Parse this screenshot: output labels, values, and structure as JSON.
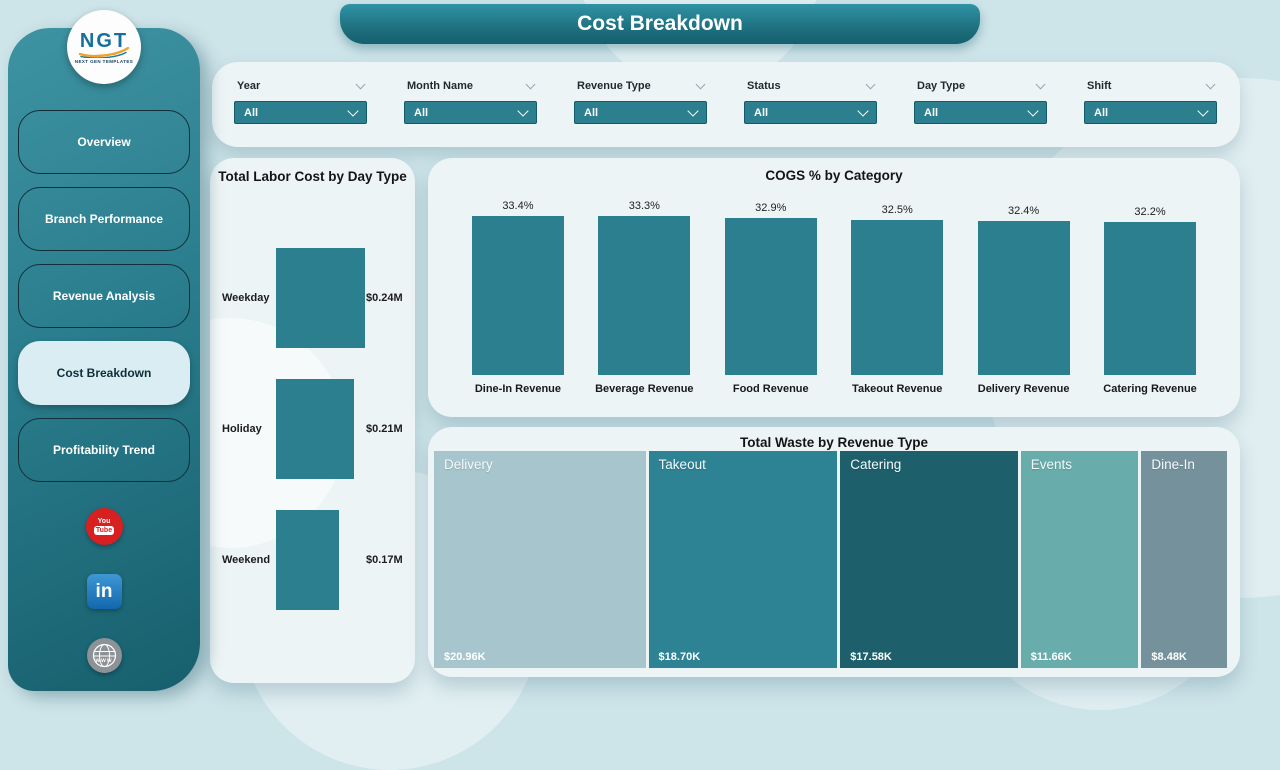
{
  "page_title": "Cost Breakdown",
  "logo": {
    "text": "NGT",
    "subtext": "NEXT GEN TEMPLATES"
  },
  "sidebar": {
    "items": [
      {
        "label": "Overview",
        "active": false
      },
      {
        "label": "Branch Performance",
        "active": false
      },
      {
        "label": "Revenue Analysis",
        "active": false
      },
      {
        "label": "Cost Breakdown",
        "active": true
      },
      {
        "label": "Profitability Trend",
        "active": false
      }
    ],
    "social": [
      {
        "name": "youtube",
        "text_top": "You",
        "text_box": "Tube"
      },
      {
        "name": "linkedin",
        "text": "in"
      },
      {
        "name": "website",
        "text": "www"
      }
    ]
  },
  "filters": [
    {
      "label": "Year",
      "value": "All"
    },
    {
      "label": "Month Name",
      "value": "All"
    },
    {
      "label": "Revenue Type",
      "value": "All"
    },
    {
      "label": "Status",
      "value": "All"
    },
    {
      "label": "Day Type",
      "value": "All"
    },
    {
      "label": "Shift",
      "value": "All"
    }
  ],
  "labor_chart": {
    "title": "Total Labor Cost by Day Type",
    "bars": [
      {
        "label": "Weekday",
        "display": "$0.24M",
        "value": 0.24
      },
      {
        "label": "Holiday",
        "display": "$0.21M",
        "value": 0.21
      },
      {
        "label": "Weekend",
        "display": "$0.17M",
        "value": 0.17
      }
    ]
  },
  "cogs_chart": {
    "title": "COGS % by Category",
    "bars": [
      {
        "label": "Dine-In Revenue",
        "display": "33.4%",
        "value": 33.4
      },
      {
        "label": "Beverage Revenue",
        "display": "33.3%",
        "value": 33.3
      },
      {
        "label": "Food Revenue",
        "display": "32.9%",
        "value": 32.9
      },
      {
        "label": "Takeout Revenue",
        "display": "32.5%",
        "value": 32.5
      },
      {
        "label": "Delivery Revenue",
        "display": "32.4%",
        "value": 32.4
      },
      {
        "label": "Catering Revenue",
        "display": "32.2%",
        "value": 32.2
      }
    ]
  },
  "treemap": {
    "title": "Total Waste by Revenue Type",
    "tiles": [
      {
        "label": "Delivery",
        "display": "$20.96K",
        "value": 20.96,
        "color": "#a6c5cd"
      },
      {
        "label": "Takeout",
        "display": "$18.70K",
        "value": 18.7,
        "color": "#2d8294"
      },
      {
        "label": "Catering",
        "display": "$17.58K",
        "value": 17.58,
        "color": "#1d5f6b"
      },
      {
        "label": "Events",
        "display": "$11.66K",
        "value": 11.66,
        "color": "#68acac"
      },
      {
        "label": "Dine-In",
        "display": "$8.48K",
        "value": 8.48,
        "color": "#75929c"
      }
    ]
  },
  "colors": {
    "accent": "#2b7f8e",
    "page_bg": "#cde4e9",
    "panel_bg": "#edf4f6",
    "sidebar_dark": "#175f6d"
  },
  "chart_data": [
    {
      "type": "bar",
      "orientation": "horizontal",
      "title": "Total Labor Cost by Day Type",
      "categories": [
        "Weekday",
        "Holiday",
        "Weekend"
      ],
      "values": [
        0.24,
        0.21,
        0.17
      ],
      "data_labels": [
        "$0.24M",
        "$0.21M",
        "$0.17M"
      ],
      "unit": "USD millions",
      "xlabel": "",
      "ylabel": "",
      "grid": false,
      "legend": false
    },
    {
      "type": "bar",
      "orientation": "vertical",
      "title": "COGS % by Category",
      "categories": [
        "Dine-In Revenue",
        "Beverage Revenue",
        "Food Revenue",
        "Takeout Revenue",
        "Delivery Revenue",
        "Catering Revenue"
      ],
      "values": [
        33.4,
        33.3,
        32.9,
        32.5,
        32.4,
        32.2
      ],
      "data_labels": [
        "33.4%",
        "33.3%",
        "32.9%",
        "32.5%",
        "32.4%",
        "32.2%"
      ],
      "unit": "%",
      "xlabel": "",
      "ylabel": "",
      "grid": false,
      "legend": false
    },
    {
      "type": "treemap",
      "title": "Total Waste by Revenue Type",
      "categories": [
        "Delivery",
        "Takeout",
        "Catering",
        "Events",
        "Dine-In"
      ],
      "values": [
        20.96,
        18.7,
        17.58,
        11.66,
        8.48
      ],
      "data_labels": [
        "$20.96K",
        "$18.70K",
        "$17.58K",
        "$11.66K",
        "$8.48K"
      ],
      "unit": "USD thousands",
      "legend": false
    }
  ]
}
